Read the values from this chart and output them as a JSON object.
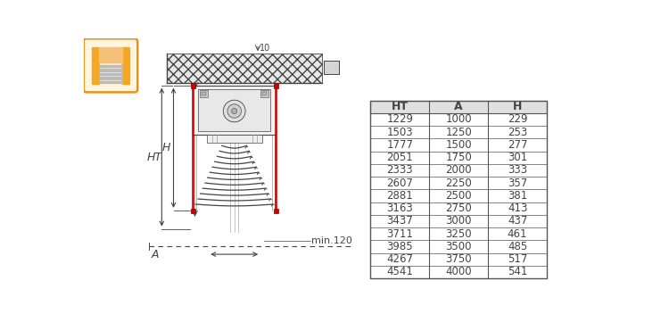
{
  "table_headers": [
    "HT",
    "A",
    "H"
  ],
  "table_data": [
    [
      1229,
      1000,
      229
    ],
    [
      1503,
      1250,
      253
    ],
    [
      1777,
      1500,
      277
    ],
    [
      2051,
      1750,
      301
    ],
    [
      2333,
      2000,
      333
    ],
    [
      2607,
      2250,
      357
    ],
    [
      2881,
      2500,
      381
    ],
    [
      3163,
      2750,
      413
    ],
    [
      3437,
      3000,
      437
    ],
    [
      3711,
      3250,
      461
    ],
    [
      3985,
      3500,
      485
    ],
    [
      4267,
      3750,
      517
    ],
    [
      4541,
      4000,
      541
    ]
  ],
  "bg_color": "#ffffff",
  "table_header_bg": "#e0e0e0",
  "table_border_color": "#555555",
  "icon_orange": "#f5a623",
  "icon_border": "#e8941a",
  "icon_bg_light": "#fff5e0",
  "drawing_color": "#444444",
  "light_gray": "#c8c8c8",
  "mid_gray": "#999999",
  "dark_gray": "#666666",
  "red_color": "#cc0000",
  "dim_label_10": "10",
  "dim_label_A": "A",
  "dim_label_H": "H",
  "dim_label_HT": "HT",
  "dim_label_min120": "min.120"
}
